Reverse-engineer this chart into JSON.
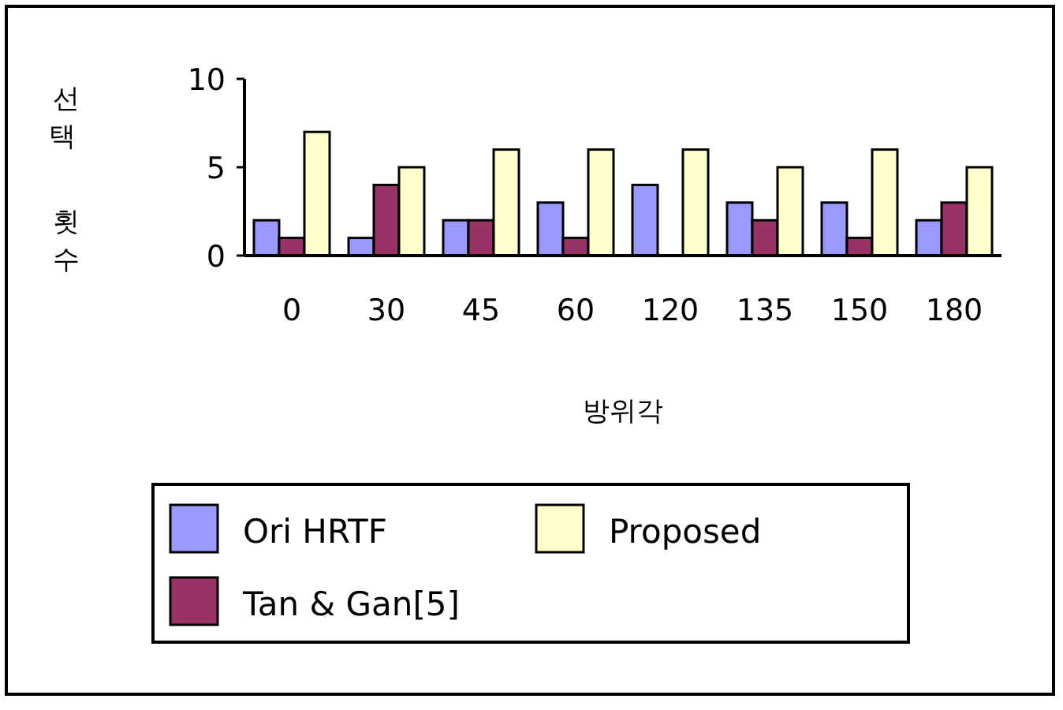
{
  "chart_data": {
    "type": "bar",
    "xlabel": "방위각",
    "ylabel": "선택 횟수",
    "categories": [
      "0",
      "30",
      "45",
      "60",
      "120",
      "135",
      "150",
      "180"
    ],
    "series": [
      {
        "name": "Ori HRTF",
        "color": "#9999ff",
        "values": [
          2,
          1,
          2,
          3,
          4,
          3,
          3,
          2
        ]
      },
      {
        "name": "Tan & Gan[5]",
        "color": "#993366",
        "values": [
          1,
          4,
          2,
          1,
          0,
          2,
          1,
          3
        ]
      },
      {
        "name": "Proposed",
        "color": "#ffffcc",
        "values": [
          7,
          5,
          6,
          6,
          6,
          5,
          6,
          5
        ]
      }
    ],
    "ylim": [
      0,
      10
    ],
    "yticks": [
      0,
      5,
      10
    ],
    "grid": false,
    "legend": "bottom"
  }
}
